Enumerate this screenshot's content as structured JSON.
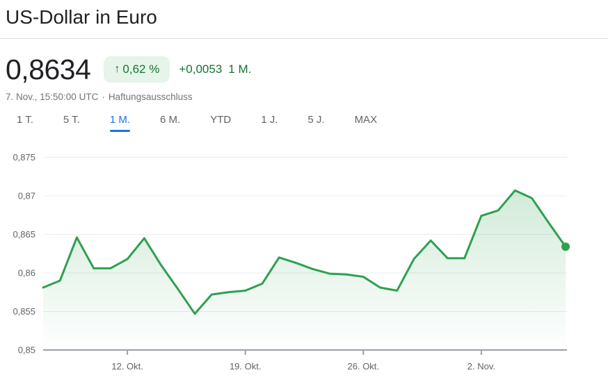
{
  "header": {
    "title": "US-Dollar in Euro"
  },
  "quote": {
    "price": "0,8634",
    "arrow_up": "↑",
    "change_percent": "0,62 %",
    "change_value": "+0,0053",
    "change_period": "1 M.",
    "timestamp": "7. Nov., 15:50:00 UTC",
    "separator": "·",
    "disclaimer": "Haftungsausschluss"
  },
  "tabs": {
    "items": [
      {
        "id": "1t",
        "label": "1 T.",
        "selected": false
      },
      {
        "id": "5t",
        "label": "5 T.",
        "selected": false
      },
      {
        "id": "1m",
        "label": "1 M.",
        "selected": true
      },
      {
        "id": "6m",
        "label": "6 M.",
        "selected": false
      },
      {
        "id": "ytd",
        "label": "YTD",
        "selected": false
      },
      {
        "id": "1j",
        "label": "1 J.",
        "selected": false
      },
      {
        "id": "5j",
        "label": "5 J.",
        "selected": false
      },
      {
        "id": "max",
        "label": "MAX",
        "selected": false
      }
    ]
  },
  "colors": {
    "text_primary": "#202124",
    "text_secondary": "#5f6368",
    "text_muted": "#70757a",
    "green_dark": "#137333",
    "green_badge_bg": "#e6f4ea",
    "line_green": "#2ea04f",
    "tab_active_blue": "#1a73e8",
    "gridline": "#e9ebee",
    "axis": "#9aa0a6",
    "divider": "#dadce0"
  },
  "chart_data": {
    "type": "area",
    "series_name": "US-Dollar in Euro",
    "x": [
      "7. Okt.",
      "8. Okt.",
      "9. Okt.",
      "10. Okt.",
      "11. Okt.",
      "12. Okt.",
      "13. Okt.",
      "14. Okt.",
      "15. Okt.",
      "16. Okt.",
      "17. Okt.",
      "18. Okt.",
      "19. Okt.",
      "20. Okt.",
      "21. Okt.",
      "22. Okt.",
      "23. Okt.",
      "24. Okt.",
      "25. Okt.",
      "26. Okt.",
      "27. Okt.",
      "28. Okt.",
      "29. Okt.",
      "30. Okt.",
      "31. Okt.",
      "1. Nov.",
      "2. Nov.",
      "3. Nov.",
      "4. Nov.",
      "5. Nov.",
      "6. Nov.",
      "7. Nov."
    ],
    "values": [
      0.8581,
      0.859,
      0.8646,
      0.8606,
      0.8606,
      0.8618,
      0.8645,
      0.861,
      0.8579,
      0.8547,
      0.8572,
      0.8575,
      0.8577,
      0.8586,
      0.862,
      0.8613,
      0.8605,
      0.8599,
      0.8598,
      0.8595,
      0.8581,
      0.8577,
      0.8618,
      0.8642,
      0.8619,
      0.8619,
      0.8674,
      0.8681,
      0.8707,
      0.8697,
      0.8665,
      0.8634
    ],
    "ylim": [
      0.85,
      0.875
    ],
    "y_ticks": [
      0.875,
      0.87,
      0.865,
      0.86,
      0.855,
      0.85
    ],
    "y_tick_labels": [
      "0,875",
      "0,87",
      "0,865",
      "0,86",
      "0,855",
      "0,85"
    ],
    "x_tick_indices": [
      5,
      12,
      19,
      26
    ],
    "x_tick_labels": [
      "12. Okt.",
      "19. Okt.",
      "26. Okt.",
      "2. Nov."
    ],
    "grid": true,
    "legend": false,
    "last_point_marker": true
  }
}
